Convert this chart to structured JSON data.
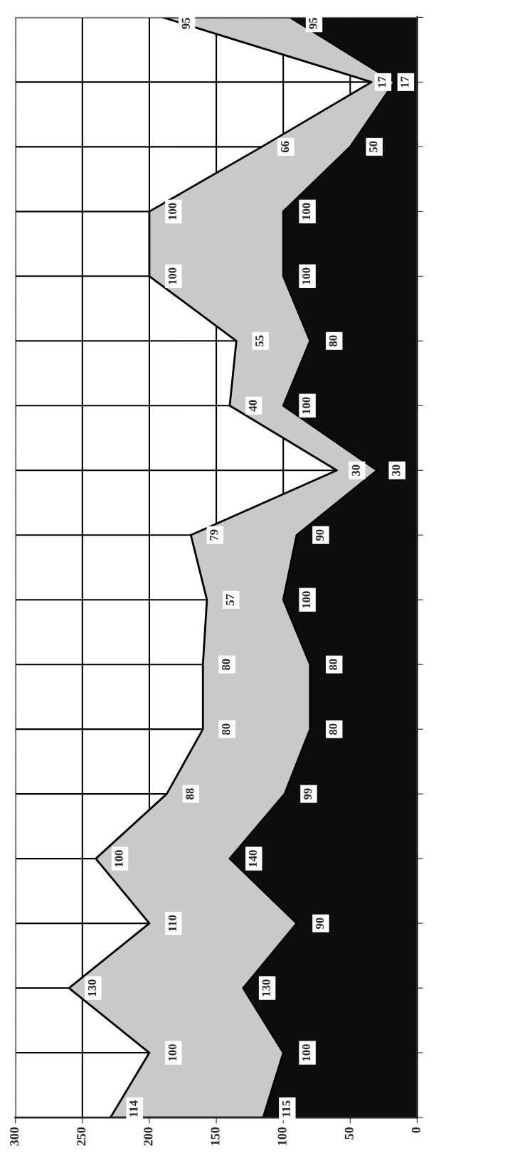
{
  "chart_data": {
    "type": "area",
    "stacked": true,
    "orientation": "horizontal",
    "categories": [
      null,
      null,
      null,
      null,
      null,
      null,
      null,
      null,
      null,
      null,
      null,
      null,
      null,
      null,
      null,
      null,
      null,
      null
    ],
    "series": [
      {
        "color": "#0d0d0d",
        "values": [
          95,
          17,
          50,
          100,
          100,
          80,
          100,
          30,
          90,
          100,
          80,
          80,
          99,
          140,
          90,
          130,
          100,
          115
        ]
      },
      {
        "color": "#c9c9c9",
        "values": [
          95,
          17,
          66,
          100,
          100,
          55,
          40,
          30,
          79,
          57,
          80,
          80,
          88,
          100,
          110,
          130,
          100,
          114
        ]
      }
    ],
    "xlim": [
      300,
      0
    ],
    "xticks": [
      0,
      50,
      100,
      150,
      200,
      250,
      300
    ],
    "grid": true,
    "data_labels": true,
    "legend": false
  }
}
